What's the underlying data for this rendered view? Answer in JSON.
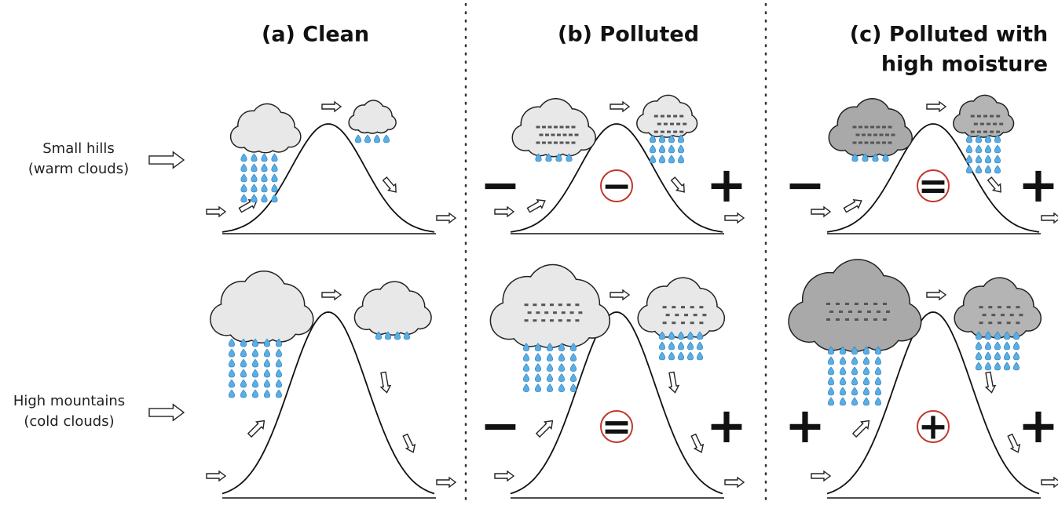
{
  "columns": [
    {
      "title": [
        "(a) Clean"
      ]
    },
    {
      "title": [
        "(b) Polluted"
      ]
    },
    {
      "title": [
        "(c) Polluted with",
        "high moisture"
      ]
    }
  ],
  "rows": [
    {
      "label": [
        "Small hills",
        "(warm clouds)"
      ],
      "signs": [
        {
          "left": "−",
          "center": "−",
          "right": "+"
        },
        {
          "left": "−",
          "center": "=",
          "right": "+"
        }
      ]
    },
    {
      "label": [
        "High mountains",
        "(cold clouds)"
      ],
      "signs": [
        {
          "left": "−",
          "center": "=",
          "right": "+"
        },
        {
          "left": "+",
          "center": "+",
          "right": "+"
        }
      ]
    }
  ]
}
